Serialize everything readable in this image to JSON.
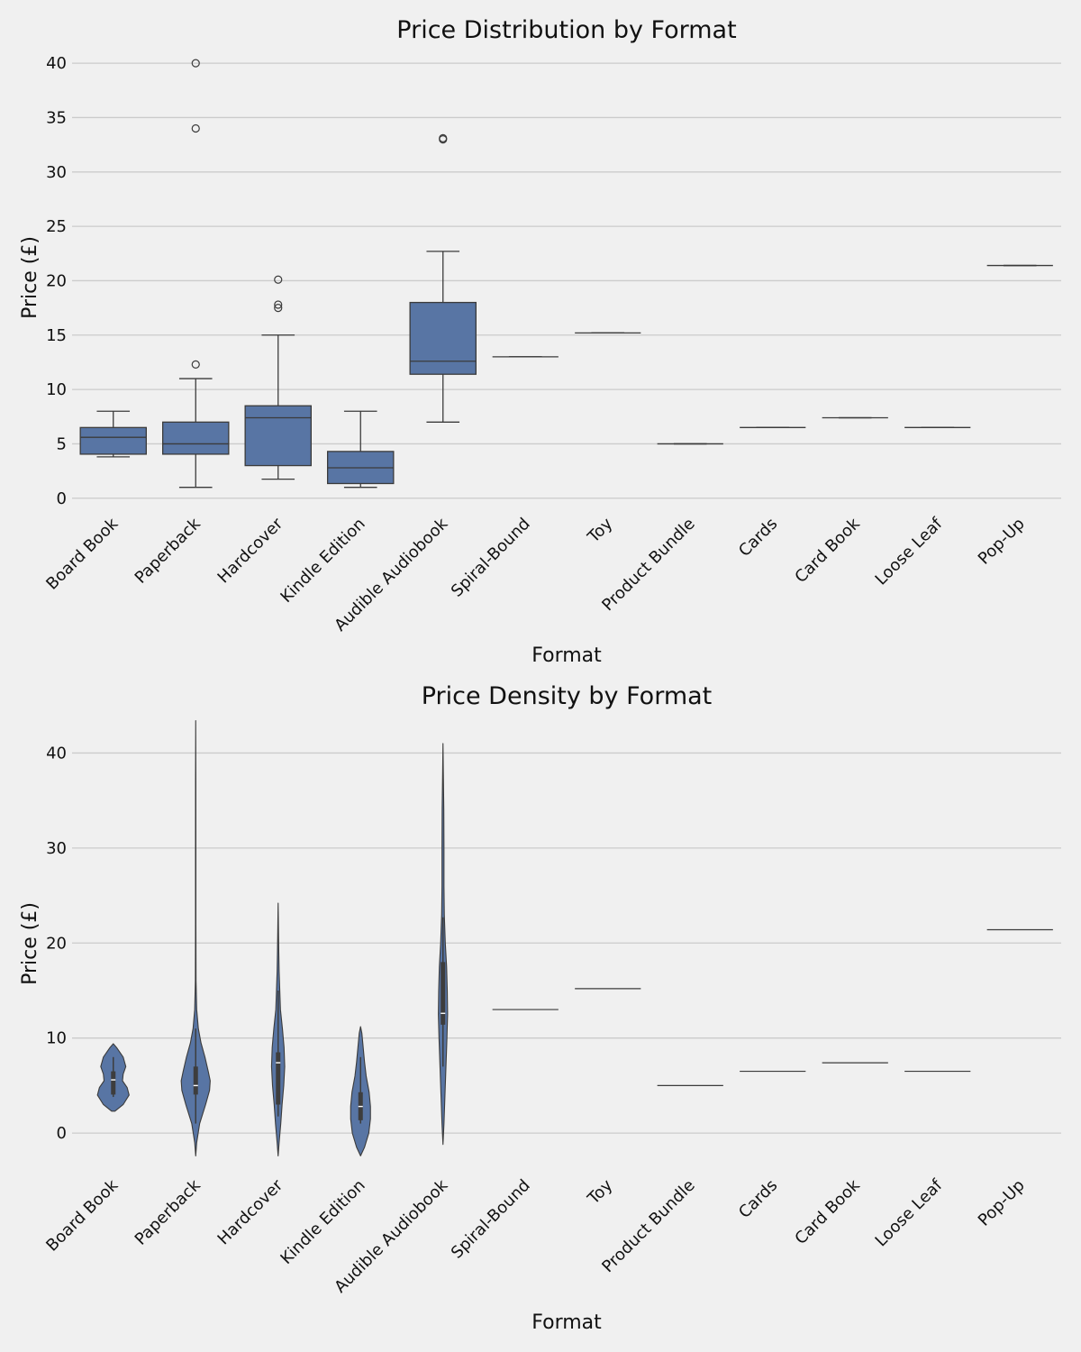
{
  "chart_data": [
    {
      "type": "box",
      "title": "Price Distribution by Format",
      "xlabel": "Format",
      "ylabel": "Price (£)",
      "ylim": [
        -0.6,
        42
      ],
      "yticks": [
        0,
        5,
        10,
        15,
        20,
        25,
        30,
        35,
        40
      ],
      "grid": "horizontal",
      "color": "#5875a4",
      "categories": [
        "Board Book",
        "Paperback",
        "Hardcover",
        "Kindle Edition",
        "Audible Audiobook",
        "Spiral-Bound",
        "Toy",
        "Product Bundle",
        "Cards",
        "Card Book",
        "Loose Leaf",
        "Pop-Up"
      ],
      "boxes": [
        {
          "min": 3.8,
          "q1": 4.05,
          "median": 5.6,
          "q3": 6.5,
          "max": 8.0,
          "outliers": []
        },
        {
          "min": 1.0,
          "q1": 4.05,
          "median": 5.0,
          "q3": 7.0,
          "max": 11.0,
          "outliers": [
            12.3,
            34.0,
            40.0
          ]
        },
        {
          "min": 1.75,
          "q1": 3.0,
          "median": 7.4,
          "q3": 8.5,
          "max": 15.0,
          "outliers": [
            17.5,
            17.8,
            20.1
          ]
        },
        {
          "min": 1.0,
          "q1": 1.35,
          "median": 2.8,
          "q3": 4.3,
          "max": 8.0,
          "outliers": []
        },
        {
          "min": 7.0,
          "q1": 11.4,
          "median": 12.6,
          "q3": 18.0,
          "max": 22.7,
          "outliers": [
            33.0,
            33.1
          ]
        },
        {
          "min": 13.0,
          "q1": 13.0,
          "median": 13.0,
          "q3": 13.0,
          "max": 13.0,
          "outliers": []
        },
        {
          "min": 15.2,
          "q1": 15.2,
          "median": 15.2,
          "q3": 15.2,
          "max": 15.2,
          "outliers": []
        },
        {
          "min": 5.0,
          "q1": 5.0,
          "median": 5.0,
          "q3": 5.0,
          "max": 5.0,
          "outliers": []
        },
        {
          "min": 6.5,
          "q1": 6.5,
          "median": 6.5,
          "q3": 6.5,
          "max": 6.5,
          "outliers": []
        },
        {
          "min": 7.4,
          "q1": 7.4,
          "median": 7.4,
          "q3": 7.4,
          "max": 7.4,
          "outliers": []
        },
        {
          "min": 6.5,
          "q1": 6.5,
          "median": 6.5,
          "q3": 6.5,
          "max": 6.5,
          "outliers": []
        },
        {
          "min": 21.4,
          "q1": 21.4,
          "median": 21.4,
          "q3": 21.4,
          "max": 21.4,
          "outliers": []
        }
      ]
    },
    {
      "type": "violin",
      "title": "Price Density by Format",
      "xlabel": "Format",
      "ylabel": "Price (£)",
      "ylim": [
        -3.5,
        44.5
      ],
      "yticks": [
        0,
        10,
        20,
        30,
        40
      ],
      "grid": "horizontal",
      "color": "#5875a4",
      "categories": [
        "Board Book",
        "Paperback",
        "Hardcover",
        "Kindle Edition",
        "Audible Audiobook",
        "Spiral-Bound",
        "Toy",
        "Product Bundle",
        "Cards",
        "Card Book",
        "Loose Leaf",
        "Pop-Up"
      ],
      "violins": [
        {
          "profile": [
            [
              2.3,
              0.05
            ],
            [
              3.0,
              0.3
            ],
            [
              4.0,
              0.48
            ],
            [
              4.8,
              0.42
            ],
            [
              5.5,
              0.28
            ],
            [
              6.2,
              0.3
            ],
            [
              7.0,
              0.38
            ],
            [
              8.0,
              0.3
            ],
            [
              9.0,
              0.1
            ],
            [
              9.4,
              0.0
            ]
          ],
          "q1": 4.05,
          "median": 5.6,
          "q3": 6.5,
          "whisker": [
            3.8,
            8.0
          ]
        },
        {
          "profile": [
            [
              -2.4,
              0.0
            ],
            [
              -1,
              0.03
            ],
            [
              1,
              0.12
            ],
            [
              3,
              0.3
            ],
            [
              4.5,
              0.42
            ],
            [
              5.5,
              0.44
            ],
            [
              6.5,
              0.38
            ],
            [
              8,
              0.28
            ],
            [
              9.5,
              0.16
            ],
            [
              11,
              0.08
            ],
            [
              13,
              0.03
            ],
            [
              16,
              0.01
            ],
            [
              22,
              0.006
            ],
            [
              30,
              0.006
            ],
            [
              37,
              0.005
            ],
            [
              43.4,
              0.0
            ]
          ],
          "q1": 4.05,
          "median": 5.0,
          "q3": 7.0,
          "whisker": [
            1.0,
            11.0
          ]
        },
        {
          "profile": [
            [
              -2.4,
              0.0
            ],
            [
              -1,
              0.03
            ],
            [
              1,
              0.08
            ],
            [
              3,
              0.12
            ],
            [
              5,
              0.17
            ],
            [
              7,
              0.2
            ],
            [
              9,
              0.18
            ],
            [
              11,
              0.13
            ],
            [
              13,
              0.07
            ],
            [
              15,
              0.05
            ],
            [
              17,
              0.03
            ],
            [
              19,
              0.02
            ],
            [
              21,
              0.012
            ],
            [
              24.2,
              0.0
            ]
          ],
          "q1": 3.0,
          "median": 7.4,
          "q3": 8.5,
          "whisker": [
            1.75,
            15.0
          ]
        },
        {
          "profile": [
            [
              -2.4,
              0.0
            ],
            [
              -1.5,
              0.12
            ],
            [
              0,
              0.25
            ],
            [
              1.5,
              0.3
            ],
            [
              2.8,
              0.3
            ],
            [
              4.3,
              0.26
            ],
            [
              6,
              0.17
            ],
            [
              7.5,
              0.12
            ],
            [
              9,
              0.08
            ],
            [
              10.5,
              0.04
            ],
            [
              11.2,
              0.0
            ]
          ],
          "q1": 1.35,
          "median": 2.8,
          "q3": 4.3,
          "whisker": [
            1.0,
            8.0
          ]
        },
        {
          "profile": [
            [
              -1.2,
              0.0
            ],
            [
              1,
              0.03
            ],
            [
              4,
              0.06
            ],
            [
              7,
              0.09
            ],
            [
              10,
              0.12
            ],
            [
              12.5,
              0.14
            ],
            [
              15,
              0.13
            ],
            [
              17.5,
              0.11
            ],
            [
              20,
              0.07
            ],
            [
              23,
              0.04
            ],
            [
              26,
              0.03
            ],
            [
              30,
              0.03
            ],
            [
              34,
              0.025
            ],
            [
              38,
              0.01
            ],
            [
              41,
              0.0
            ]
          ],
          "q1": 11.4,
          "median": 12.6,
          "q3": 18.0,
          "whisker": [
            7.0,
            22.7
          ]
        },
        {
          "value": 13.0
        },
        {
          "value": 15.2
        },
        {
          "value": 5.0
        },
        {
          "value": 6.5
        },
        {
          "value": 7.4
        },
        {
          "value": 6.5
        },
        {
          "value": 21.4
        }
      ]
    }
  ]
}
